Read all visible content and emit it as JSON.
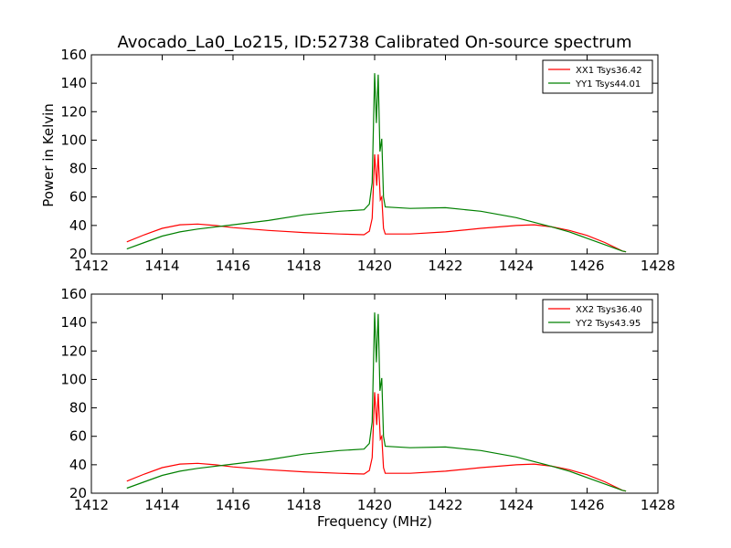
{
  "chart_data": [
    {
      "type": "line",
      "title": "Avocado_La0_Lo215, ID:52738 Calibrated On-source spectrum",
      "xlabel": "",
      "ylabel": "Power in Kelvin",
      "xlim": [
        1412,
        1428
      ],
      "ylim": [
        20,
        160
      ],
      "xticks": [
        1412,
        1414,
        1416,
        1418,
        1420,
        1422,
        1424,
        1426,
        1428
      ],
      "yticks": [
        20,
        40,
        60,
        80,
        100,
        120,
        140,
        160
      ],
      "grid": false,
      "legend_position": "top-right",
      "series": [
        {
          "name": "XX1 Tsys36.42",
          "color": "#ff0000",
          "points": [
            [
              1413,
              28.5
            ],
            [
              1413.5,
              33.5
            ],
            [
              1414,
              38
            ],
            [
              1414.5,
              40.5
            ],
            [
              1415,
              41
            ],
            [
              1415.5,
              40
            ],
            [
              1416,
              38.5
            ],
            [
              1417,
              36.5
            ],
            [
              1418,
              35
            ],
            [
              1419,
              34
            ],
            [
              1419.7,
              33.5
            ],
            [
              1419.85,
              36
            ],
            [
              1419.93,
              45
            ],
            [
              1420,
              90
            ],
            [
              1420.06,
              68
            ],
            [
              1420.1,
              90
            ],
            [
              1420.16,
              58
            ],
            [
              1420.2,
              60
            ],
            [
              1420.25,
              38
            ],
            [
              1420.3,
              34
            ],
            [
              1421,
              34
            ],
            [
              1422,
              35.5
            ],
            [
              1423,
              38
            ],
            [
              1424,
              40
            ],
            [
              1424.5,
              40.5
            ],
            [
              1425,
              39
            ],
            [
              1425.5,
              36.5
            ],
            [
              1426,
              33
            ],
            [
              1426.5,
              28
            ],
            [
              1427,
              22
            ],
            [
              1427.1,
              21.5
            ]
          ]
        },
        {
          "name": "YY1 Tsys44.01",
          "color": "#008000",
          "points": [
            [
              1413,
              23.5
            ],
            [
              1413.5,
              28
            ],
            [
              1414,
              32.5
            ],
            [
              1414.5,
              35.5
            ],
            [
              1415,
              37.5
            ],
            [
              1416,
              40.5
            ],
            [
              1417,
              43.5
            ],
            [
              1418,
              47.5
            ],
            [
              1419,
              50
            ],
            [
              1419.7,
              51
            ],
            [
              1419.85,
              55
            ],
            [
              1419.93,
              70
            ],
            [
              1420,
              147
            ],
            [
              1420.05,
              112
            ],
            [
              1420.1,
              146
            ],
            [
              1420.15,
              92
            ],
            [
              1420.2,
              101
            ],
            [
              1420.25,
              60
            ],
            [
              1420.3,
              53
            ],
            [
              1421,
              52
            ],
            [
              1422,
              52.5
            ],
            [
              1423,
              50
            ],
            [
              1424,
              45.5
            ],
            [
              1425,
              39
            ],
            [
              1425.5,
              35.5
            ],
            [
              1426,
              31
            ],
            [
              1426.5,
              26.5
            ],
            [
              1427,
              22
            ],
            [
              1427.1,
              21.5
            ]
          ]
        }
      ]
    },
    {
      "type": "line",
      "title": "",
      "xlabel": "Frequency (MHz)",
      "ylabel": "",
      "xlim": [
        1412,
        1428
      ],
      "ylim": [
        20,
        160
      ],
      "xticks": [
        1412,
        1414,
        1416,
        1418,
        1420,
        1422,
        1424,
        1426,
        1428
      ],
      "yticks": [
        20,
        40,
        60,
        80,
        100,
        120,
        140,
        160
      ],
      "grid": false,
      "legend_position": "top-right",
      "series": [
        {
          "name": "XX2 Tsys36.40",
          "color": "#ff0000",
          "points": [
            [
              1413,
              28.5
            ],
            [
              1413.5,
              33.5
            ],
            [
              1414,
              38
            ],
            [
              1414.5,
              40.5
            ],
            [
              1415,
              41
            ],
            [
              1415.5,
              40
            ],
            [
              1416,
              38.5
            ],
            [
              1417,
              36.5
            ],
            [
              1418,
              35
            ],
            [
              1419,
              34
            ],
            [
              1419.7,
              33.5
            ],
            [
              1419.85,
              36
            ],
            [
              1419.93,
              45
            ],
            [
              1420,
              91
            ],
            [
              1420.06,
              68
            ],
            [
              1420.1,
              90
            ],
            [
              1420.16,
              58
            ],
            [
              1420.2,
              60
            ],
            [
              1420.25,
              38
            ],
            [
              1420.3,
              34
            ],
            [
              1421,
              34
            ],
            [
              1422,
              35.5
            ],
            [
              1423,
              38
            ],
            [
              1424,
              40
            ],
            [
              1424.5,
              40.5
            ],
            [
              1425,
              39
            ],
            [
              1425.5,
              36.5
            ],
            [
              1426,
              33
            ],
            [
              1426.5,
              28
            ],
            [
              1427,
              22
            ],
            [
              1427.1,
              21.5
            ]
          ]
        },
        {
          "name": "YY2 Tsys43.95",
          "color": "#008000",
          "points": [
            [
              1413,
              23.5
            ],
            [
              1413.5,
              28
            ],
            [
              1414,
              32.5
            ],
            [
              1414.5,
              35.5
            ],
            [
              1415,
              37.5
            ],
            [
              1416,
              40.5
            ],
            [
              1417,
              43.5
            ],
            [
              1418,
              47.5
            ],
            [
              1419,
              50
            ],
            [
              1419.7,
              51
            ],
            [
              1419.85,
              55
            ],
            [
              1419.93,
              70
            ],
            [
              1420,
              147
            ],
            [
              1420.05,
              112
            ],
            [
              1420.1,
              146
            ],
            [
              1420.15,
              92
            ],
            [
              1420.2,
              101
            ],
            [
              1420.25,
              60
            ],
            [
              1420.3,
              53
            ],
            [
              1421,
              52
            ],
            [
              1422,
              52.5
            ],
            [
              1423,
              50
            ],
            [
              1424,
              45.5
            ],
            [
              1425,
              39
            ],
            [
              1425.5,
              35.5
            ],
            [
              1426,
              31
            ],
            [
              1426.5,
              26.5
            ],
            [
              1427,
              22
            ],
            [
              1427.1,
              21.5
            ]
          ]
        }
      ]
    }
  ]
}
